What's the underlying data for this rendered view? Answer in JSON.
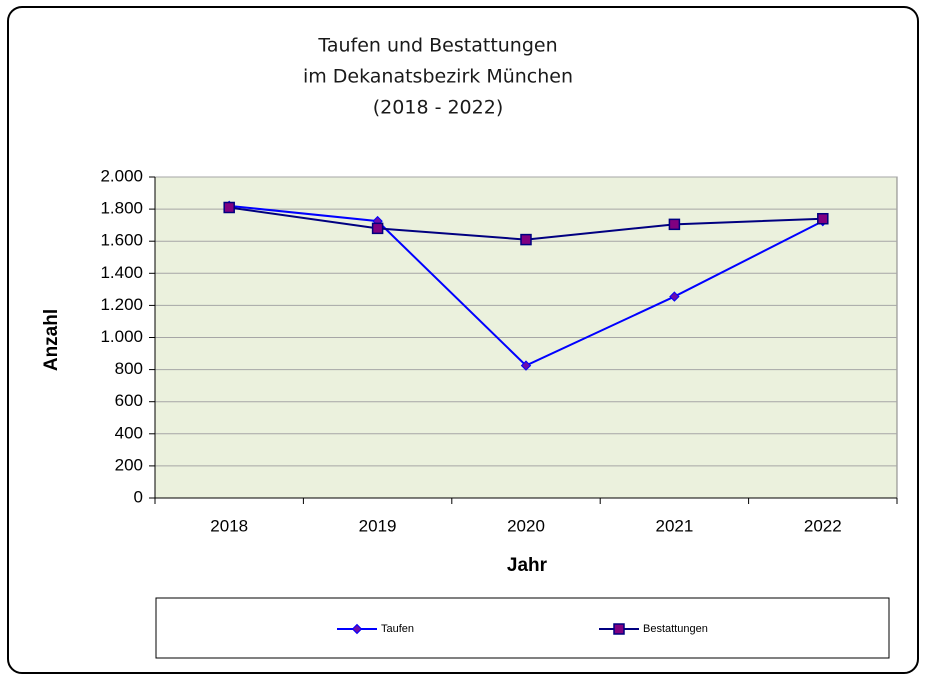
{
  "chart_data": {
    "type": "line",
    "title": [
      "Taufen und Bestattungen",
      "im Dekanatsbezirk München",
      "(2018 - 2022)"
    ],
    "x_label": "Jahr",
    "y_label": "Anzahl",
    "categories": [
      "2018",
      "2019",
      "2020",
      "2021",
      "2022"
    ],
    "series": [
      {
        "name": "Taufen",
        "color": "#0000ff",
        "marker_color": "#6a0dad",
        "marker": "diamond",
        "values": [
          1820,
          1725,
          825,
          1255,
          1725
        ]
      },
      {
        "name": "Bestattungen",
        "color": "#000080",
        "marker_color": "#800080",
        "marker": "square",
        "values": [
          1810,
          1680,
          1610,
          1705,
          1740
        ]
      }
    ],
    "ylim": [
      0,
      2000
    ],
    "yticks": [
      0,
      200,
      400,
      600,
      800,
      {
        "value": 1000,
        "label": "1.000"
      },
      {
        "value": 1200,
        "label": "1.200"
      },
      {
        "value": 1400,
        "label": "1.400"
      },
      {
        "value": 1600,
        "label": "1.600"
      },
      {
        "value": 1800,
        "label": "1.800"
      },
      {
        "value": 2000,
        "label": "2.000"
      }
    ],
    "grid": true,
    "legend": "bottom",
    "plot_background": "#ebf1dd"
  }
}
